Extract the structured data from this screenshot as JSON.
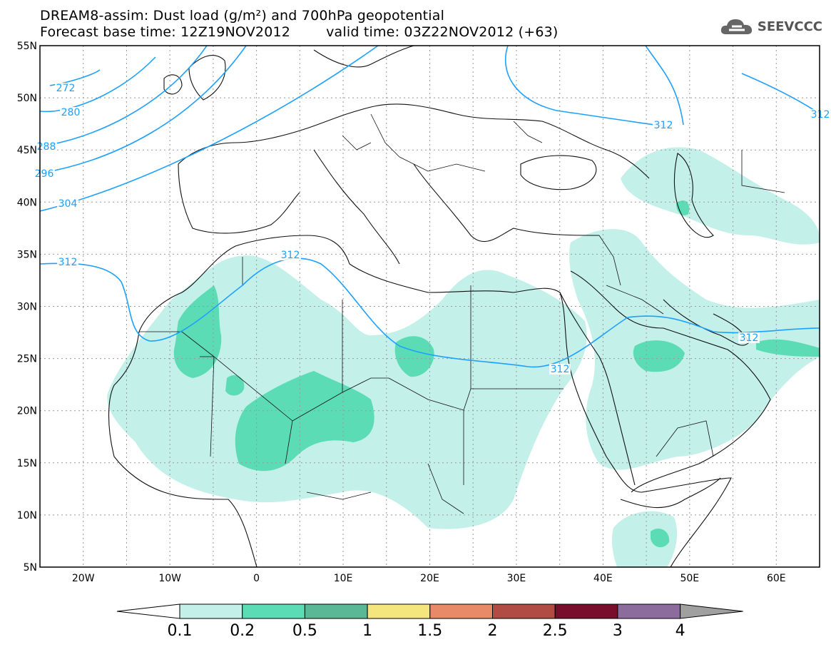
{
  "title": {
    "line1": "DREAM8-assim: Dust load (g/m²) and 700hPa geopotential",
    "base_time": "Forecast base time: 12Z19NOV2012",
    "valid_time": "valid time: 03Z22NOV2012 (+63)"
  },
  "logo": {
    "text": "SEEVCCC",
    "icon": "cloud-icon"
  },
  "map": {
    "lat_labels": [
      "55N",
      "50N",
      "45N",
      "40N",
      "35N",
      "30N",
      "25N",
      "20N",
      "15N",
      "10N",
      "5N"
    ],
    "lon_labels": [
      "20W",
      "10W",
      "0",
      "10E",
      "20E",
      "30E",
      "40E",
      "50E",
      "60E"
    ],
    "extent": {
      "lon": [
        -25,
        65
      ],
      "lat": [
        5,
        55
      ]
    },
    "contours": {
      "field": "700hPa geopotential",
      "labels": [
        "272",
        "280",
        "288",
        "296",
        "304",
        "312",
        "312",
        "312",
        "312",
        "312",
        "312"
      ]
    }
  },
  "colorbar": {
    "levels": [
      "0.1",
      "0.2",
      "0.5",
      "1",
      "1.5",
      "2",
      "2.5",
      "3",
      "4"
    ],
    "colors": [
      "#c4f0ea",
      "#5cdcb4",
      "#5ab896",
      "#f4e67c",
      "#e88a68",
      "#b04c44",
      "#780e2c",
      "#8c6c9c"
    ],
    "under_color": "#ffffff",
    "over_color": "#a0a0a0"
  }
}
